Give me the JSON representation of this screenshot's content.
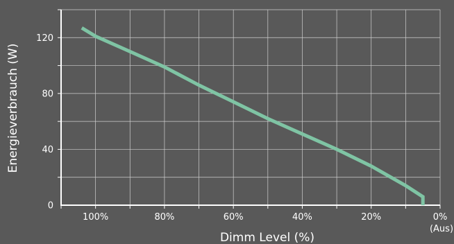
{
  "chart_data": {
    "type": "line",
    "title": "",
    "xlabel": "Dimm Level (%)",
    "ylabel": "Energieverbrauch (W)",
    "x_reversed": true,
    "xlim": [
      0,
      110
    ],
    "ylim": [
      0,
      140
    ],
    "x_ticks": [
      {
        "value": 100,
        "label": "100%"
      },
      {
        "value": 80,
        "label": "80%"
      },
      {
        "value": 60,
        "label": "60%"
      },
      {
        "value": 40,
        "label": "40%"
      },
      {
        "value": 20,
        "label": "20%"
      },
      {
        "value": 0,
        "label": "0%"
      }
    ],
    "x_tick_note": "(Aus)",
    "y_ticks": [
      {
        "value": 0,
        "label": "0"
      },
      {
        "value": 40,
        "label": "40"
      },
      {
        "value": 80,
        "label": "80"
      },
      {
        "value": 120,
        "label": "120"
      }
    ],
    "grid": true,
    "series": [
      {
        "color": "#7fc4a4",
        "x": [
          104,
          100,
          90,
          80,
          70,
          60,
          50,
          40,
          30,
          20,
          10,
          5,
          5
        ],
        "y": [
          127,
          121,
          110,
          99,
          86,
          74,
          62,
          51,
          40,
          28,
          14,
          6,
          0
        ]
      }
    ],
    "colors": {
      "background": "#595959",
      "grid": "#d0d0d0",
      "axis": "#ffffff",
      "text": "#ffffff"
    }
  }
}
